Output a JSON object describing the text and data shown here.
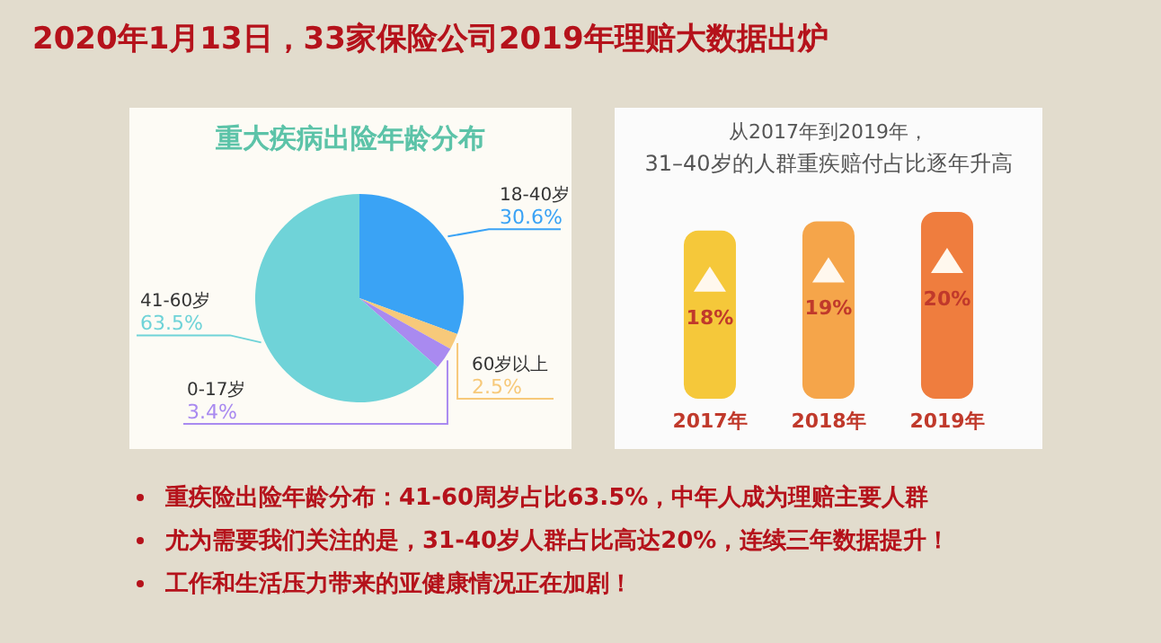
{
  "chart_data": [
    {
      "type": "pie",
      "title": "重大疾病出险年龄分布",
      "categories": [
        "18-40岁",
        "60岁以上",
        "0-17岁",
        "41-60岁"
      ],
      "values": [
        30.6,
        2.5,
        3.4,
        63.5
      ],
      "colors": [
        "#3aa3f5",
        "#f7c97a",
        "#a98af0",
        "#6fd3d8"
      ],
      "value_labels": [
        "30.6%",
        "2.5%",
        "3.4%",
        "63.5%"
      ],
      "legend": false,
      "annotations": [
        "2020年1月13日，33家保险公司2019年理赔大数据出炉"
      ]
    },
    {
      "type": "bar",
      "title": "从2017年到2019年，",
      "subtitle": "31–40岁的人群重疾赔付占比逐年升高",
      "categories": [
        "2017年",
        "2018年",
        "2019年"
      ],
      "values": [
        18,
        19,
        20
      ],
      "value_labels": [
        "18%",
        "19%",
        "20%"
      ],
      "colors": [
        "#f5c83a",
        "#f5a54a",
        "#ef7d3e"
      ],
      "legend": false,
      "grid": false,
      "tick_labels": "x",
      "annotations": [
        "重疾险出险年龄分布：41-60周岁占比63.5%，中年人成为理赔主要人群",
        "尤为需要我们关注的是，31-40岁人群占比高达20%，连续三年数据提升！",
        "工作和生活压力带来的亚健康情况正在加剧！"
      ]
    }
  ]
}
